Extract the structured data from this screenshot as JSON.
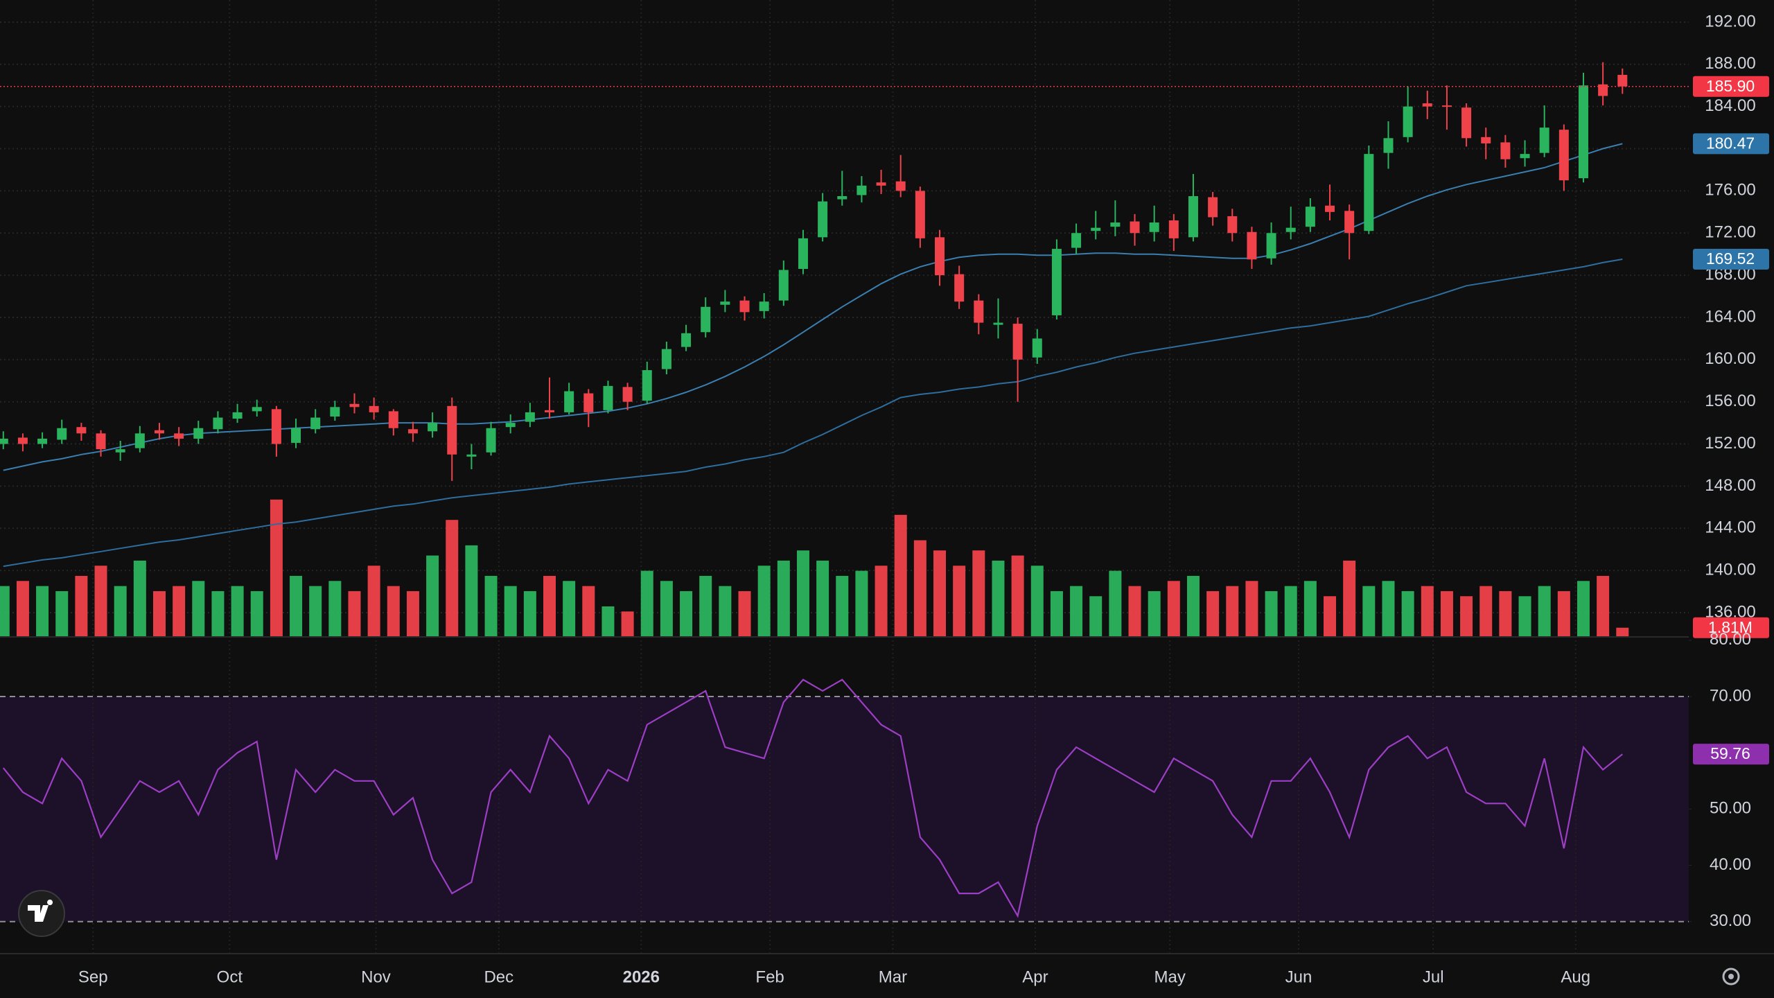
{
  "chart_data": [
    {
      "type": "candlestick",
      "xlim": [
        -0.17,
        86.4
      ],
      "ylim": [
        133.7,
        194.1
      ],
      "yticks": [
        {
          "value": 136,
          "label": "136.00"
        },
        {
          "value": 140,
          "label": "140.00"
        },
        {
          "value": 144,
          "label": "144.00"
        },
        {
          "value": 148,
          "label": "148.00"
        },
        {
          "value": 152,
          "label": "152.00"
        },
        {
          "value": 156,
          "label": "156.00"
        },
        {
          "value": 160,
          "label": "160.00"
        },
        {
          "value": 164,
          "label": "164.00"
        },
        {
          "value": 168,
          "label": "168.00"
        },
        {
          "value": 172,
          "label": "172.00"
        },
        {
          "value": 176,
          "label": "176.00"
        },
        {
          "value": 180,
          "label": "180.00"
        },
        {
          "value": 184,
          "label": "184.00"
        },
        {
          "value": 188,
          "label": "188.00"
        },
        {
          "value": 192,
          "label": "192.00"
        }
      ],
      "grid": true,
      "up_color": "#2bb45e",
      "down_color": "#f0424a",
      "ohlc": [
        [
          152.0,
          153.2,
          151.5,
          152.5
        ],
        [
          152.6,
          153.0,
          151.3,
          152.0
        ],
        [
          152.0,
          153.1,
          151.6,
          152.5
        ],
        [
          152.4,
          154.3,
          152.0,
          153.5
        ],
        [
          153.6,
          154.0,
          152.3,
          153.0
        ],
        [
          153.0,
          153.3,
          150.8,
          151.5
        ],
        [
          151.2,
          152.3,
          150.4,
          151.5
        ],
        [
          151.6,
          153.7,
          151.2,
          153.0
        ],
        [
          153.3,
          154.0,
          152.4,
          153.0
        ],
        [
          153.0,
          153.6,
          151.8,
          152.5
        ],
        [
          152.5,
          154.2,
          152.0,
          153.5
        ],
        [
          153.4,
          155.1,
          153.0,
          154.5
        ],
        [
          154.4,
          155.8,
          154.0,
          155.0
        ],
        [
          155.1,
          156.2,
          154.6,
          155.5
        ],
        [
          155.3,
          155.6,
          150.8,
          152.0
        ],
        [
          152.1,
          154.4,
          151.6,
          153.5
        ],
        [
          153.4,
          155.3,
          153.0,
          154.5
        ],
        [
          154.6,
          156.1,
          154.2,
          155.5
        ],
        [
          155.8,
          156.8,
          154.9,
          155.5
        ],
        [
          155.6,
          156.4,
          154.3,
          155.0
        ],
        [
          155.1,
          155.3,
          152.8,
          153.5
        ],
        [
          153.4,
          154.1,
          152.2,
          153.0
        ],
        [
          153.2,
          155.0,
          152.6,
          154.0
        ],
        [
          155.6,
          156.4,
          148.5,
          151.0
        ],
        [
          150.8,
          152.0,
          149.6,
          151.0
        ],
        [
          151.2,
          154.1,
          150.9,
          153.5
        ],
        [
          153.6,
          154.8,
          153.0,
          154.0
        ],
        [
          154.1,
          155.9,
          153.6,
          155.0
        ],
        [
          155.2,
          158.3,
          154.4,
          155.0
        ],
        [
          155.0,
          157.8,
          154.8,
          157.0
        ],
        [
          156.8,
          157.2,
          153.6,
          155.0
        ],
        [
          155.2,
          158.0,
          154.9,
          157.5
        ],
        [
          157.4,
          157.8,
          155.2,
          156.0
        ],
        [
          156.1,
          159.8,
          155.8,
          159.0
        ],
        [
          159.1,
          161.7,
          158.6,
          161.0
        ],
        [
          161.2,
          163.3,
          160.8,
          162.5
        ],
        [
          162.6,
          165.9,
          162.1,
          165.0
        ],
        [
          165.2,
          166.6,
          164.5,
          165.5
        ],
        [
          165.6,
          166.0,
          163.7,
          164.5
        ],
        [
          164.6,
          166.3,
          163.9,
          165.5
        ],
        [
          165.6,
          169.4,
          165.1,
          168.5
        ],
        [
          168.6,
          172.3,
          168.1,
          171.5
        ],
        [
          171.6,
          175.8,
          171.2,
          175.0
        ],
        [
          175.2,
          177.9,
          174.6,
          175.5
        ],
        [
          175.6,
          177.4,
          174.9,
          176.5
        ],
        [
          176.8,
          178.0,
          175.7,
          176.5
        ],
        [
          176.9,
          179.4,
          175.4,
          176.0
        ],
        [
          176.0,
          176.4,
          170.6,
          171.5
        ],
        [
          171.6,
          172.3,
          167.0,
          168.0
        ],
        [
          168.1,
          168.9,
          164.8,
          165.5
        ],
        [
          165.6,
          166.2,
          162.4,
          163.5
        ],
        [
          163.3,
          165.8,
          162.0,
          163.5
        ],
        [
          163.4,
          164.0,
          156.0,
          160.0
        ],
        [
          160.2,
          162.9,
          159.6,
          162.0
        ],
        [
          164.2,
          171.4,
          163.8,
          170.5
        ],
        [
          170.6,
          172.9,
          170.0,
          172.0
        ],
        [
          172.2,
          174.1,
          171.4,
          172.5
        ],
        [
          172.6,
          175.1,
          171.7,
          173.0
        ],
        [
          173.1,
          173.8,
          170.8,
          172.0
        ],
        [
          172.1,
          174.6,
          171.2,
          173.0
        ],
        [
          173.2,
          173.8,
          170.3,
          171.5
        ],
        [
          171.6,
          177.6,
          171.2,
          175.5
        ],
        [
          175.4,
          175.9,
          172.7,
          173.5
        ],
        [
          173.6,
          174.3,
          171.2,
          172.0
        ],
        [
          172.1,
          172.6,
          168.6,
          169.5
        ],
        [
          169.6,
          173.0,
          169.0,
          172.0
        ],
        [
          172.1,
          174.5,
          171.4,
          172.5
        ],
        [
          172.6,
          175.3,
          172.1,
          174.5
        ],
        [
          174.6,
          176.6,
          173.2,
          174.0
        ],
        [
          174.1,
          174.7,
          169.5,
          172.0
        ],
        [
          172.2,
          180.3,
          171.9,
          179.5
        ],
        [
          179.6,
          182.6,
          178.1,
          181.0
        ],
        [
          181.1,
          185.9,
          180.6,
          184.0
        ],
        [
          184.3,
          185.5,
          182.8,
          184.0
        ],
        [
          184.1,
          186.0,
          181.8,
          184.0
        ],
        [
          183.9,
          184.3,
          180.2,
          181.0
        ],
        [
          181.1,
          182.0,
          179.0,
          180.5
        ],
        [
          180.6,
          181.3,
          178.2,
          179.0
        ],
        [
          179.1,
          180.8,
          178.3,
          179.5
        ],
        [
          179.6,
          184.1,
          179.2,
          182.0
        ],
        [
          181.8,
          182.3,
          176.0,
          177.0
        ],
        [
          177.2,
          187.2,
          176.8,
          186.0
        ],
        [
          186.1,
          188.2,
          184.1,
          185.0
        ],
        [
          187.0,
          187.6,
          185.2,
          185.9
        ]
      ],
      "lines": [
        {
          "color": "#3a7fb0",
          "values": [
            149.5,
            149.9,
            150.3,
            150.6,
            151.0,
            151.3,
            151.7,
            152.1,
            152.5,
            152.8,
            153.0,
            153.1,
            153.2,
            153.3,
            153.4,
            153.5,
            153.6,
            153.7,
            153.8,
            153.9,
            154.0,
            154.0,
            154.0,
            153.9,
            153.9,
            154.0,
            154.1,
            154.3,
            154.5,
            154.7,
            154.9,
            155.1,
            155.4,
            155.8,
            156.3,
            156.9,
            157.6,
            158.4,
            159.3,
            160.3,
            161.4,
            162.6,
            163.8,
            165.0,
            166.1,
            167.2,
            168.1,
            168.8,
            169.3,
            169.7,
            169.9,
            170.0,
            170.0,
            169.9,
            169.9,
            170.0,
            170.1,
            170.1,
            170.0,
            170.0,
            169.9,
            169.8,
            169.7,
            169.6,
            169.6,
            169.9,
            170.4,
            171.0,
            171.7,
            172.4,
            173.2,
            174.0,
            174.8,
            175.5,
            176.1,
            176.6,
            177.0,
            177.4,
            177.8,
            178.2,
            178.8,
            179.4,
            180.0,
            180.47
          ]
        },
        {
          "color": "#2e6e9e",
          "values": [
            140.4,
            140.7,
            141.0,
            141.2,
            141.5,
            141.8,
            142.1,
            142.4,
            142.7,
            142.9,
            143.2,
            143.5,
            143.8,
            144.1,
            144.4,
            144.6,
            144.9,
            145.2,
            145.5,
            145.8,
            146.1,
            146.3,
            146.6,
            146.9,
            147.1,
            147.3,
            147.5,
            147.7,
            147.9,
            148.2,
            148.4,
            148.6,
            148.8,
            149.0,
            149.2,
            149.4,
            149.8,
            150.1,
            150.5,
            150.8,
            151.2,
            152.1,
            152.9,
            153.8,
            154.7,
            155.5,
            156.4,
            156.7,
            156.9,
            157.2,
            157.4,
            157.7,
            157.9,
            158.4,
            158.8,
            159.3,
            159.7,
            160.2,
            160.6,
            160.9,
            161.2,
            161.5,
            161.8,
            162.1,
            162.4,
            162.7,
            163.0,
            163.2,
            163.5,
            163.8,
            164.1,
            164.7,
            165.3,
            165.8,
            166.4,
            167.0,
            167.3,
            167.6,
            167.9,
            168.2,
            168.5,
            168.8,
            169.2,
            169.52
          ]
        }
      ],
      "price_markers": [
        {
          "value": 185.9,
          "label": "185.90",
          "color": "#f23645",
          "line": true
        },
        {
          "value": 180.47,
          "label": "180.47",
          "color": "#2d75a8"
        },
        {
          "value": 169.52,
          "label": "169.52",
          "color": "#2d75a8"
        }
      ],
      "volume": {
        "ylim": [
          0,
          50
        ],
        "values": [
          10,
          11,
          10,
          9,
          12,
          14,
          10,
          15,
          9,
          10,
          11,
          9,
          10,
          9,
          27,
          12,
          10,
          11,
          9,
          14,
          10,
          9,
          16,
          23,
          18,
          12,
          10,
          9,
          12,
          11,
          10,
          6,
          5,
          13,
          11,
          9,
          12,
          10,
          9,
          14,
          15,
          17,
          15,
          12,
          13,
          14,
          24,
          19,
          17,
          14,
          17,
          15,
          16,
          14,
          9,
          10,
          8,
          13,
          10,
          9,
          11,
          12,
          9,
          10,
          11,
          9,
          10,
          11,
          8,
          15,
          10,
          11,
          9,
          10,
          9,
          8,
          10,
          9,
          8,
          10,
          9,
          11,
          12,
          1.81
        ],
        "marker": {
          "value": 1.81,
          "label": "1.81M",
          "color": "#f23645"
        }
      }
    },
    {
      "type": "line",
      "xlim": [
        -0.17,
        86.4
      ],
      "ylim": [
        24.3,
        80.6
      ],
      "yticks": [
        {
          "value": 30,
          "label": "30.00"
        },
        {
          "value": 40,
          "label": "40.00"
        },
        {
          "value": 50,
          "label": "50.00"
        },
        {
          "value": 70,
          "label": "70.00"
        },
        {
          "value": 80,
          "label": "80.00"
        }
      ],
      "xticks": [
        {
          "value": 4.6,
          "label": "Sep"
        },
        {
          "value": 11.6,
          "label": "Oct"
        },
        {
          "value": 19.1,
          "label": "Nov"
        },
        {
          "value": 25.4,
          "label": "Dec"
        },
        {
          "value": 32.7,
          "label": "2026"
        },
        {
          "value": 39.3,
          "label": "Feb"
        },
        {
          "value": 45.6,
          "label": "Mar"
        },
        {
          "value": 52.9,
          "label": "Apr"
        },
        {
          "value": 59.8,
          "label": "May"
        },
        {
          "value": 66.4,
          "label": "Jun"
        },
        {
          "value": 73.3,
          "label": "Jul"
        },
        {
          "value": 80.6,
          "label": "Aug"
        }
      ],
      "band": [
        30,
        70
      ],
      "band_color": "#1d1029",
      "color": "#9c3fc4",
      "values": [
        57.3,
        53,
        51,
        59,
        55,
        45,
        50,
        55,
        53,
        55,
        49,
        57,
        60,
        62,
        41,
        57,
        53,
        57,
        55,
        55,
        49,
        52,
        41,
        35,
        37,
        53,
        57,
        53,
        63,
        59,
        51,
        57,
        55,
        65,
        67,
        69,
        71,
        61,
        60,
        59,
        69,
        73,
        71,
        73,
        69,
        65,
        63,
        45,
        41,
        35,
        35,
        37,
        31,
        47,
        57,
        61,
        59,
        57,
        55,
        53,
        59,
        57,
        55,
        49,
        45,
        55,
        55,
        59,
        53,
        45,
        57,
        61,
        63,
        59,
        61,
        53,
        51,
        51,
        47,
        59,
        43,
        61,
        57,
        59.76
      ],
      "marker": {
        "value": 59.76,
        "label": "59.76",
        "color": "#8e2fae"
      }
    }
  ]
}
